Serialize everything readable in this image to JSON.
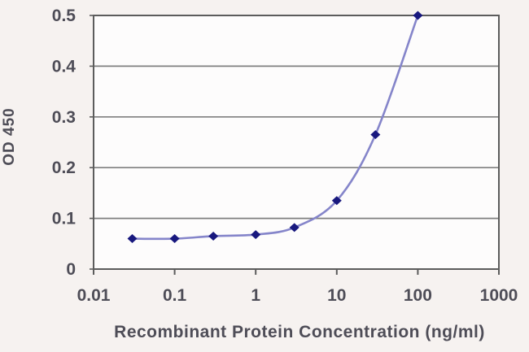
{
  "figure": {
    "background_color": "#f6f2f0",
    "plot_background_color": "#fdfcfc",
    "grid_color": "#7f7f7f",
    "axis_color": "#5c5c5c",
    "text_color": "#4e4d57"
  },
  "chart_data": {
    "type": "line",
    "x": [
      0.03,
      0.1,
      0.3,
      1,
      3,
      10,
      30,
      100
    ],
    "y": [
      0.06,
      0.06,
      0.065,
      0.068,
      0.082,
      0.135,
      0.265,
      0.5
    ],
    "title": "",
    "xlabel": "Recombinant Protein Concentration (ng/ml)",
    "ylabel": "OD 450",
    "x_scale": "log",
    "y_scale": "linear",
    "xlim": [
      0.01,
      1000
    ],
    "ylim": [
      0,
      0.5
    ],
    "x_tick_values": [
      0.01,
      0.1,
      1,
      10,
      100,
      1000
    ],
    "x_tick_labels": [
      "0.01",
      "0.1",
      "1",
      "10",
      "100",
      "1000"
    ],
    "y_tick_values": [
      0,
      0.1,
      0.2,
      0.3,
      0.4,
      0.5
    ],
    "y_tick_labels": [
      "0",
      "0.1",
      "0.2",
      "0.3",
      "0.4",
      "0.5"
    ],
    "grid": "horizontal",
    "legend": "none",
    "line_color": "#8585ca",
    "marker": "diamond",
    "marker_color": "#18187e",
    "curve_style": "smooth"
  }
}
